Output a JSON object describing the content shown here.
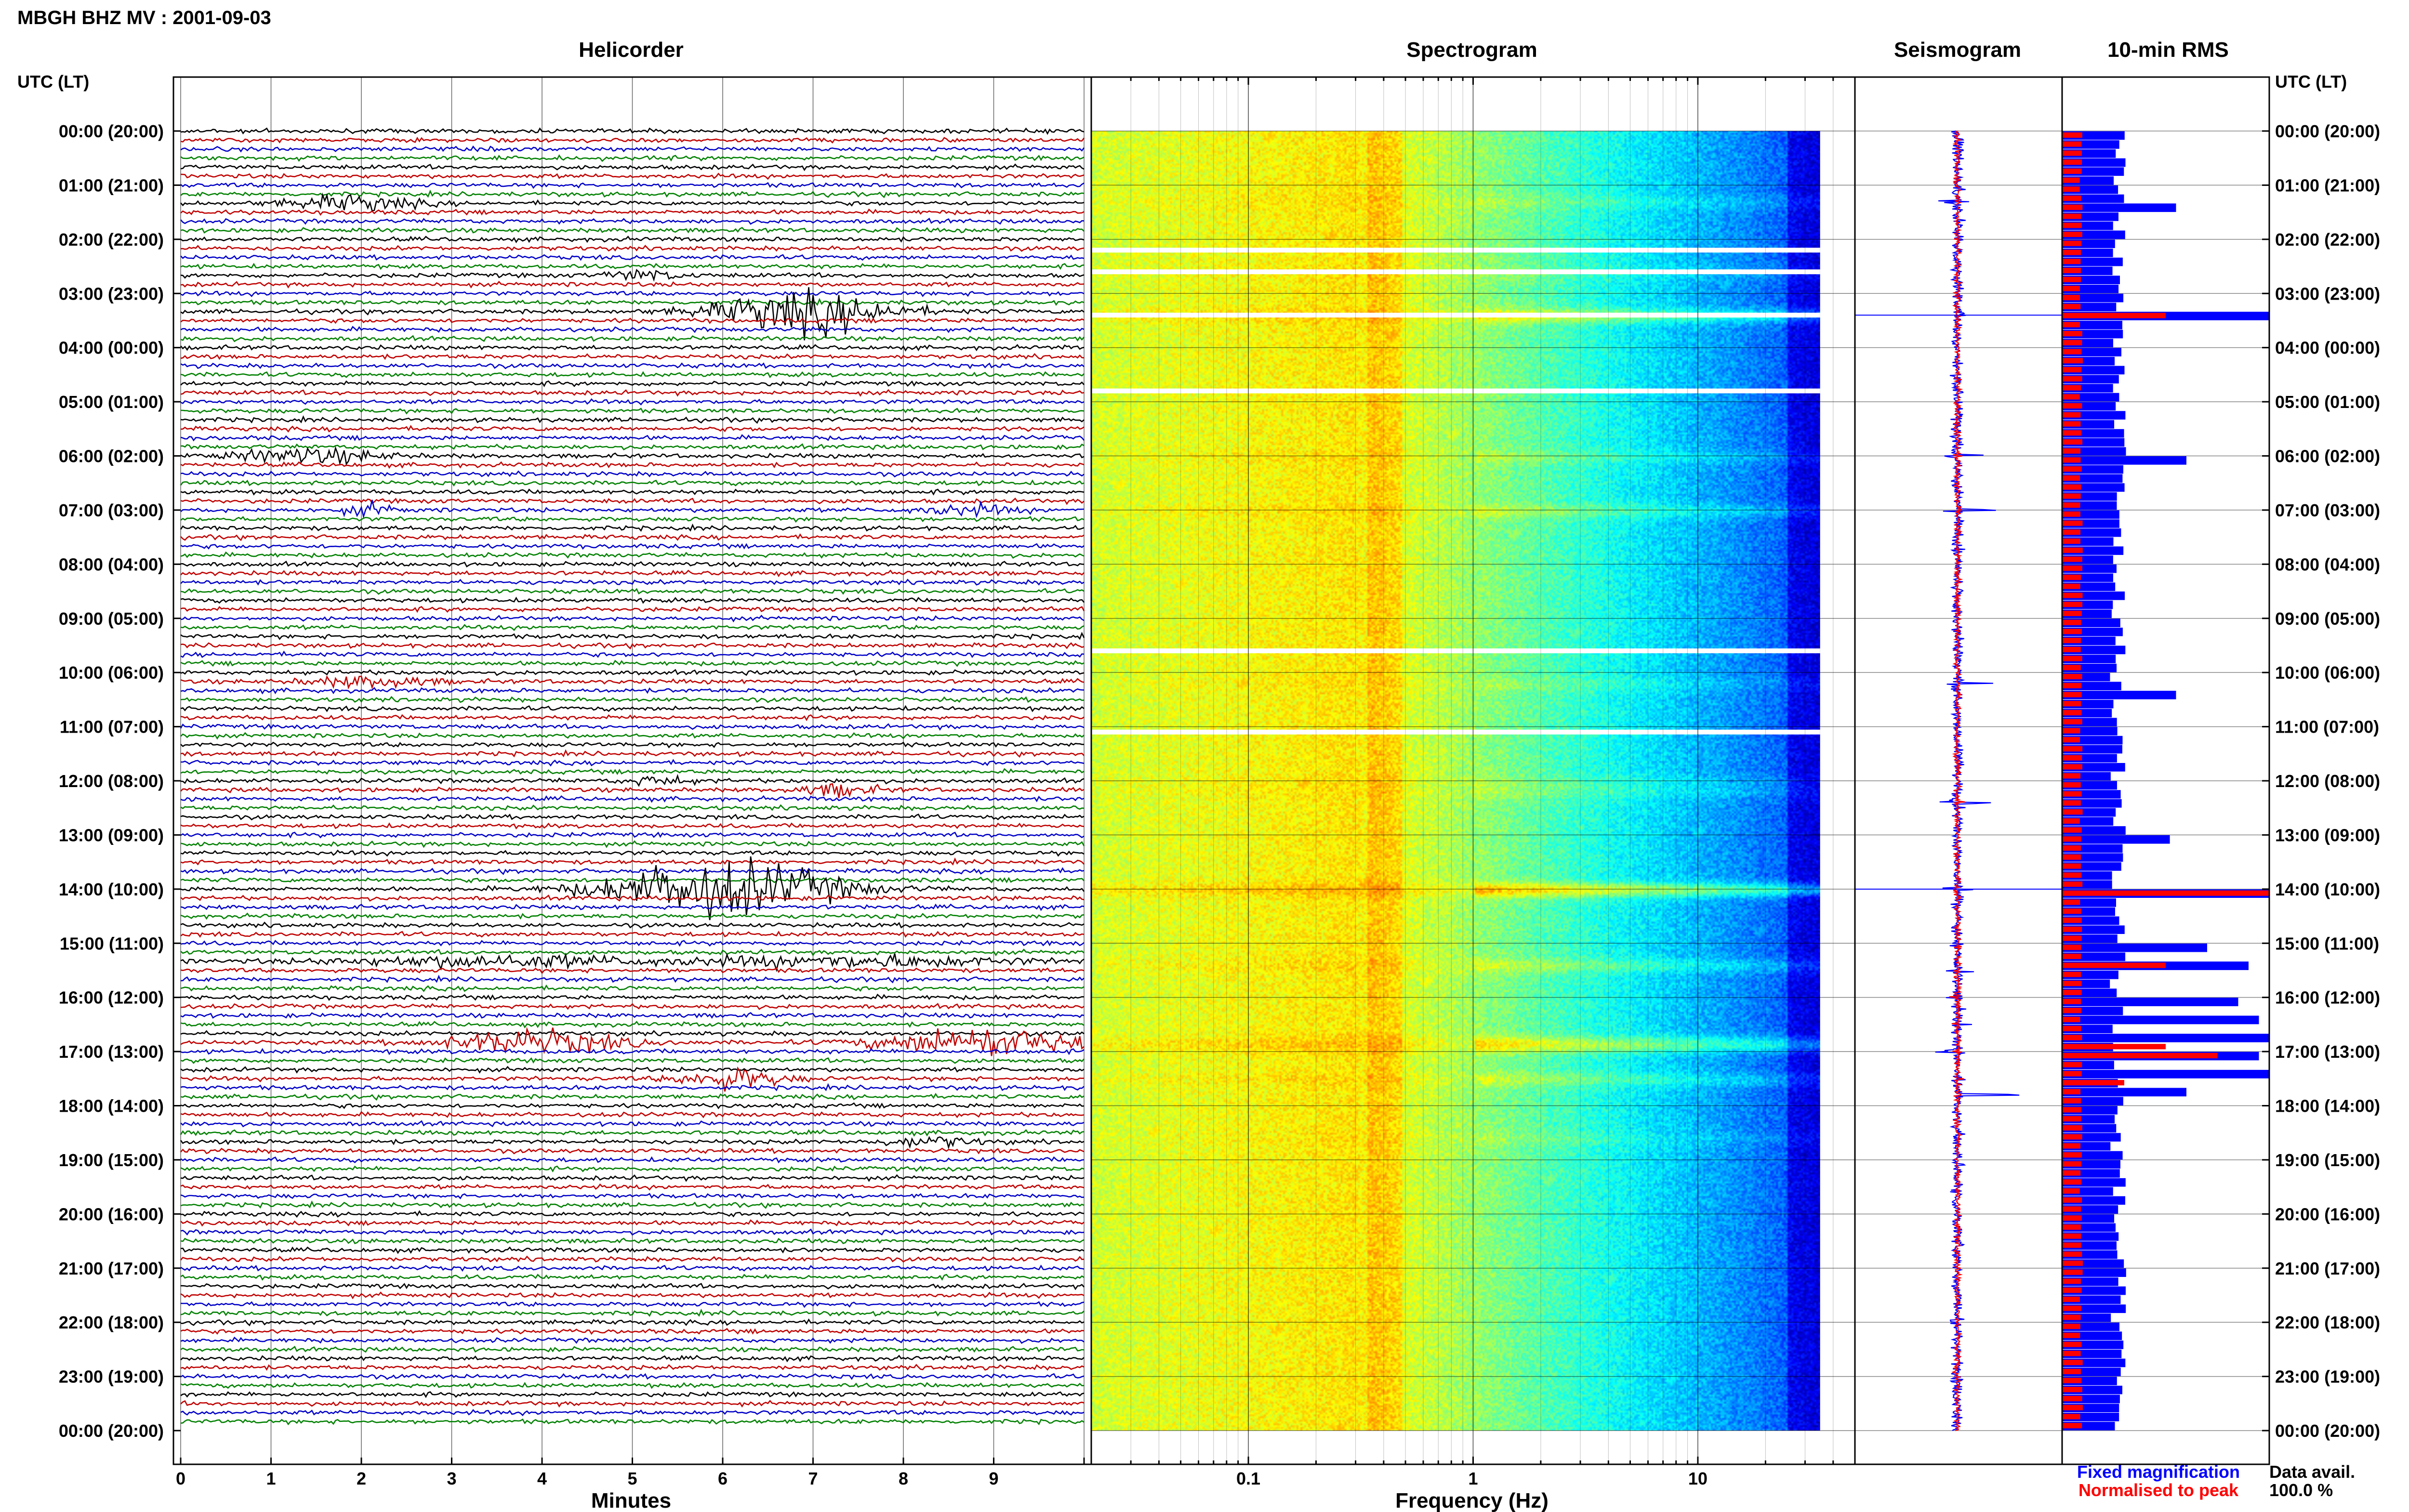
{
  "title": "MBGH BHZ MV : 2001-09-03",
  "panels": {
    "helicorder": "Helicorder",
    "spectrogram": "Spectrogram",
    "seismogram": "Seismogram",
    "rms": "10-min RMS"
  },
  "time_axis_label_left": "UTC (LT)",
  "time_axis_label_right": "UTC (LT)",
  "time_labels": [
    "00:00 (20:00)",
    "01:00 (21:00)",
    "02:00 (22:00)",
    "03:00 (23:00)",
    "04:00 (00:00)",
    "05:00 (01:00)",
    "06:00 (02:00)",
    "07:00 (03:00)",
    "08:00 (04:00)",
    "09:00 (05:00)",
    "10:00 (06:00)",
    "11:00 (07:00)",
    "12:00 (08:00)",
    "13:00 (09:00)",
    "14:00 (10:00)",
    "15:00 (11:00)",
    "16:00 (12:00)",
    "17:00 (13:00)",
    "18:00 (14:00)",
    "19:00 (15:00)",
    "20:00 (16:00)",
    "21:00 (17:00)",
    "22:00 (18:00)",
    "23:00 (19:00)",
    "00:00 (20:00)"
  ],
  "legend": {
    "fixed": "Fixed magnification",
    "normalised": "Normalised to peak",
    "avail_label": "Data avail.",
    "avail_value": "100.0 %"
  },
  "colors": {
    "trace_cycle": [
      "#000000",
      "#c00000",
      "#0000c8",
      "#008000"
    ],
    "rms_fixed": "#0000ff",
    "rms_normalised": "#ff0000",
    "gap": "#ffffff"
  },
  "chart_data": [
    {
      "type": "line",
      "name": "helicorder",
      "xlabel": "Minutes",
      "xticks": [
        "0",
        "1",
        "2",
        "3",
        "4",
        "5",
        "6",
        "7",
        "8",
        "9"
      ],
      "xlim": [
        0,
        10
      ],
      "ylim_hours": [
        0,
        24
      ],
      "lines_per_hour": 6,
      "events": [
        {
          "hour": 1.3,
          "minute": 1.9,
          "amp": 1.2,
          "dur": 1.0
        },
        {
          "hour": 2.6,
          "minute": 5.1,
          "amp": 0.8,
          "dur": 0.6
        },
        {
          "hour": 3.4,
          "minute": 6.9,
          "amp": 3.5,
          "dur": 1.4
        },
        {
          "hour": 6.0,
          "minute": 1.4,
          "amp": 1.2,
          "dur": 1.2
        },
        {
          "hour": 7.0,
          "minute": 2.1,
          "amp": 1.0,
          "dur": 0.4
        },
        {
          "hour": 7.0,
          "minute": 8.7,
          "amp": 0.8,
          "dur": 0.8
        },
        {
          "hour": 10.2,
          "minute": 2.1,
          "amp": 0.9,
          "dur": 1.0
        },
        {
          "hour": 12.0,
          "minute": 5.3,
          "amp": 0.8,
          "dur": 0.5
        },
        {
          "hour": 12.2,
          "minute": 7.3,
          "amp": 1.0,
          "dur": 0.6
        },
        {
          "hour": 14.0,
          "minute": 6.0,
          "amp": 5.0,
          "dur": 1.8
        },
        {
          "hour": 15.4,
          "minute": 3.5,
          "amp": 1.0,
          "dur": 2.5
        },
        {
          "hour": 15.4,
          "minute": 7.5,
          "amp": 1.0,
          "dur": 2.5
        },
        {
          "hour": 16.8,
          "minute": 3.9,
          "amp": 2.0,
          "dur": 1.4
        },
        {
          "hour": 16.9,
          "minute": 8.9,
          "amp": 2.5,
          "dur": 1.6
        },
        {
          "hour": 17.5,
          "minute": 6.1,
          "amp": 1.8,
          "dur": 0.8
        },
        {
          "hour": 18.6,
          "minute": 8.3,
          "amp": 0.8,
          "dur": 0.8
        }
      ]
    },
    {
      "type": "heatmap",
      "name": "spectrogram",
      "xlabel": "Frequency (Hz)",
      "xscale": "log",
      "xticks": [
        "0.1",
        "1",
        "10"
      ],
      "xlim": [
        0.02,
        50
      ],
      "data_max_freq": 35,
      "colormap": "jet",
      "ylim_hours": [
        0,
        24
      ],
      "gaps_hours": [
        2.2,
        2.6,
        3.4,
        4.8,
        9.6,
        11.1
      ]
    },
    {
      "type": "line",
      "name": "seismogram",
      "series": [
        {
          "name": "Fixed magnification"
        },
        {
          "name": "Normalised to peak"
        }
      ],
      "spikes_hours": [
        1.3,
        3.4,
        6.0,
        7.0,
        10.2,
        12.4,
        14.0,
        15.5,
        16.0,
        16.5,
        17.0,
        17.5,
        17.8
      ]
    },
    {
      "type": "bar",
      "name": "10-min RMS",
      "orientation": "horizontal",
      "bins_per_hour": 6,
      "hours": 24,
      "series": [
        {
          "name": "Fixed magnification"
        },
        {
          "name": "Normalised to peak"
        }
      ],
      "fixed_peaks": [
        {
          "bin": 8,
          "value": 0.55
        },
        {
          "bin": 20,
          "value": 1.0
        },
        {
          "bin": 36,
          "value": 0.6
        },
        {
          "bin": 62,
          "value": 0.55
        },
        {
          "bin": 78,
          "value": 0.52
        },
        {
          "bin": 84,
          "value": 1.0
        },
        {
          "bin": 90,
          "value": 0.7
        },
        {
          "bin": 92,
          "value": 0.9
        },
        {
          "bin": 96,
          "value": 0.85
        },
        {
          "bin": 98,
          "value": 0.95
        },
        {
          "bin": 100,
          "value": 1.0
        },
        {
          "bin": 102,
          "value": 0.95
        },
        {
          "bin": 104,
          "value": 1.0
        },
        {
          "bin": 106,
          "value": 0.6
        }
      ],
      "normalised_peaks": [
        {
          "bin": 20,
          "value": 0.5
        },
        {
          "bin": 84,
          "value": 1.0
        },
        {
          "bin": 92,
          "value": 0.5
        },
        {
          "bin": 101,
          "value": 0.5
        },
        {
          "bin": 102,
          "value": 0.75
        },
        {
          "bin": 105,
          "value": 0.3
        }
      ]
    }
  ]
}
